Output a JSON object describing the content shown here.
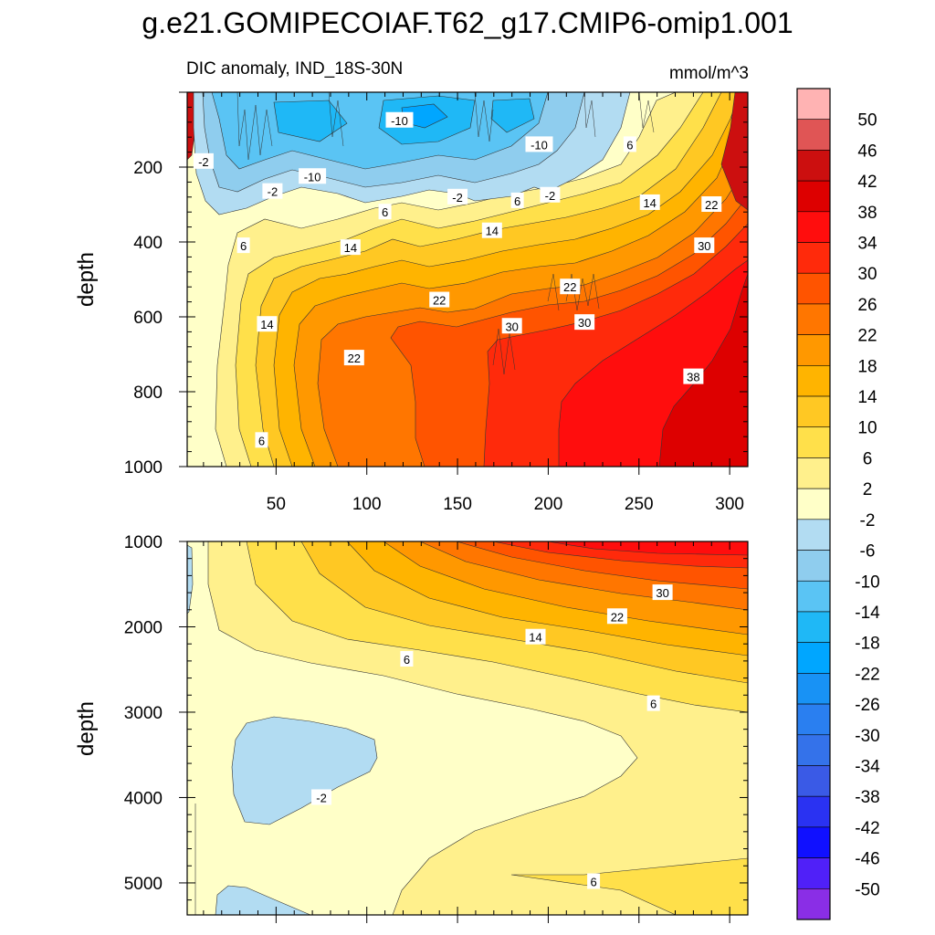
{
  "title": "g.e21.GOMIPECOIAF.T62_g17.CMIP6-omip1.001",
  "subtitle_left": "DIC anomaly, IND_18S-30N",
  "subtitle_right": "mmol/m^3",
  "chart_data": [
    {
      "type": "contour",
      "panel": "upper",
      "ylabel": "depth",
      "xlabel": "",
      "xlim": [
        1,
        310
      ],
      "ylim": [
        1000,
        0
      ],
      "xticks": [
        50,
        100,
        150,
        200,
        250,
        300
      ],
      "yticks": [
        200,
        400,
        600,
        800,
        1000
      ],
      "contour_labels": [
        {
          "text": "-10",
          "x": 118,
          "depth": 75
        },
        {
          "text": "-10",
          "x": 195,
          "depth": 140
        },
        {
          "text": "-10",
          "x": 70,
          "depth": 225
        },
        {
          "text": "-2",
          "x": 10,
          "depth": 185
        },
        {
          "text": "-2",
          "x": 48,
          "depth": 265
        },
        {
          "text": "-2",
          "x": 150,
          "depth": 280
        },
        {
          "text": "-2",
          "x": 201,
          "depth": 275
        },
        {
          "text": "6",
          "x": 245,
          "depth": 140
        },
        {
          "text": "6",
          "x": 110,
          "depth": 320
        },
        {
          "text": "6",
          "x": 183,
          "depth": 290
        },
        {
          "text": "6",
          "x": 32,
          "depth": 410
        },
        {
          "text": "6",
          "x": 42,
          "depth": 930
        },
        {
          "text": "14",
          "x": 256,
          "depth": 295
        },
        {
          "text": "14",
          "x": 91,
          "depth": 415
        },
        {
          "text": "14",
          "x": 169,
          "depth": 370
        },
        {
          "text": "14",
          "x": 45,
          "depth": 620
        },
        {
          "text": "22",
          "x": 290,
          "depth": 300
        },
        {
          "text": "22",
          "x": 212,
          "depth": 520
        },
        {
          "text": "22",
          "x": 140,
          "depth": 555
        },
        {
          "text": "22",
          "x": 93,
          "depth": 710
        },
        {
          "text": "30",
          "x": 286,
          "depth": 410
        },
        {
          "text": "30",
          "x": 220,
          "depth": 615
        },
        {
          "text": "30",
          "x": 180,
          "depth": 625
        },
        {
          "text": "38",
          "x": 280,
          "depth": 760
        }
      ]
    },
    {
      "type": "contour",
      "panel": "lower",
      "ylabel": "depth",
      "xlabel": "",
      "xlim": [
        1,
        310
      ],
      "ylim": [
        5375,
        1000
      ],
      "yticks": [
        1000,
        2000,
        3000,
        4000,
        5000
      ],
      "contour_labels": [
        {
          "text": "30",
          "x": 263,
          "depth": 1600
        },
        {
          "text": "22",
          "x": 238,
          "depth": 1880
        },
        {
          "text": "14",
          "x": 193,
          "depth": 2120
        },
        {
          "text": "6",
          "x": 122,
          "depth": 2380
        },
        {
          "text": "6",
          "x": 258,
          "depth": 2900
        },
        {
          "text": "-2",
          "x": 75,
          "depth": 4000
        },
        {
          "text": "6",
          "x": 225,
          "depth": 4985
        }
      ]
    }
  ],
  "colorbar": {
    "labels": [
      "50",
      "46",
      "42",
      "38",
      "34",
      "30",
      "26",
      "22",
      "18",
      "14",
      "10",
      "6",
      "2",
      "-2",
      "-6",
      "-10",
      "-14",
      "-18",
      "-22",
      "-26",
      "-30",
      "-34",
      "-38",
      "-42",
      "-46",
      "-50"
    ],
    "colors": [
      "#ffb3b3",
      "#e05555",
      "#cc0f0f",
      "#dd0000",
      "#ff0d0d",
      "#ff2a0b",
      "#ff5400",
      "#ff7600",
      "#ff9800",
      "#ffb400",
      "#ffc823",
      "#ffe04a",
      "#fff08c",
      "#ffffc8",
      "#b2dcf2",
      "#8fcdee",
      "#5ac4f4",
      "#1fb8f6",
      "#00a6ff",
      "#1892f5",
      "#2a7ff0",
      "#3472ea",
      "#3a5ae6",
      "#2a32f2",
      "#1010ff",
      "#5020f8",
      "#8a2ee6"
    ]
  }
}
